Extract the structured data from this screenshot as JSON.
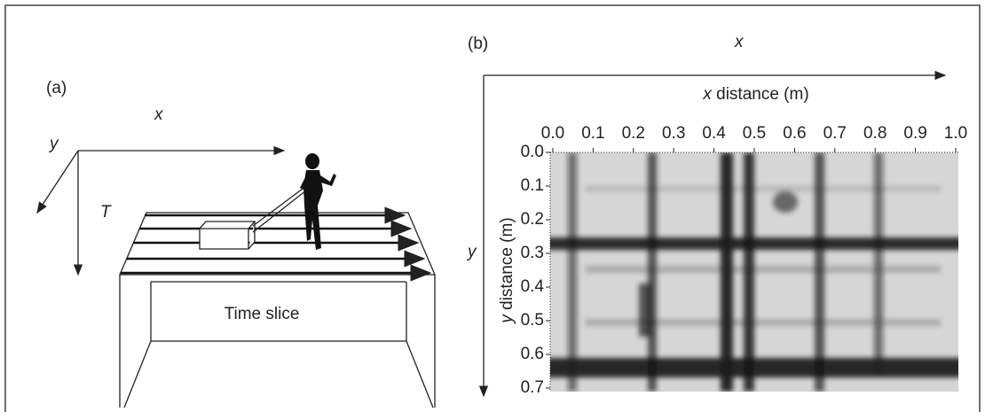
{
  "panel_a": {
    "label": "(a)",
    "x_axis": "x",
    "y_axis": "y",
    "t_axis": "T",
    "slice_label": "Time slice"
  },
  "panel_b": {
    "label": "(b)",
    "x_axis": "x",
    "y_axis": "y",
    "x_axis_label": {
      "variable": "x",
      "text": "distance (m)"
    },
    "y_axis_label": {
      "variable": "y",
      "text": "distance (m)"
    },
    "x_ticks": [
      {
        "value": 0,
        "label": "0.0"
      },
      {
        "value": 0.1,
        "label": "0.1"
      },
      {
        "value": 0.2,
        "label": "0.2"
      },
      {
        "value": 0.3,
        "label": "0.3"
      },
      {
        "value": 0.4,
        "label": "0.4"
      },
      {
        "value": 0.5,
        "label": "0.5"
      },
      {
        "value": 0.6,
        "label": "0.6"
      },
      {
        "value": 0.7,
        "label": "0.7"
      },
      {
        "value": 0.8,
        "label": "0.8"
      },
      {
        "value": 0.9,
        "label": "0.9"
      },
      {
        "value": 1,
        "label": "1.0"
      }
    ],
    "y_ticks": [
      {
        "value": 0,
        "label": "0.0"
      },
      {
        "value": 0.1,
        "label": "0.1"
      },
      {
        "value": 0.2,
        "label": "0.2"
      },
      {
        "value": 0.3,
        "label": "0.3"
      },
      {
        "value": 0.4,
        "label": "0.4"
      },
      {
        "value": 0.5,
        "label": "0.5"
      },
      {
        "value": 0.6,
        "label": "0.6"
      },
      {
        "value": 0.7,
        "label": "0.7"
      }
    ]
  }
}
